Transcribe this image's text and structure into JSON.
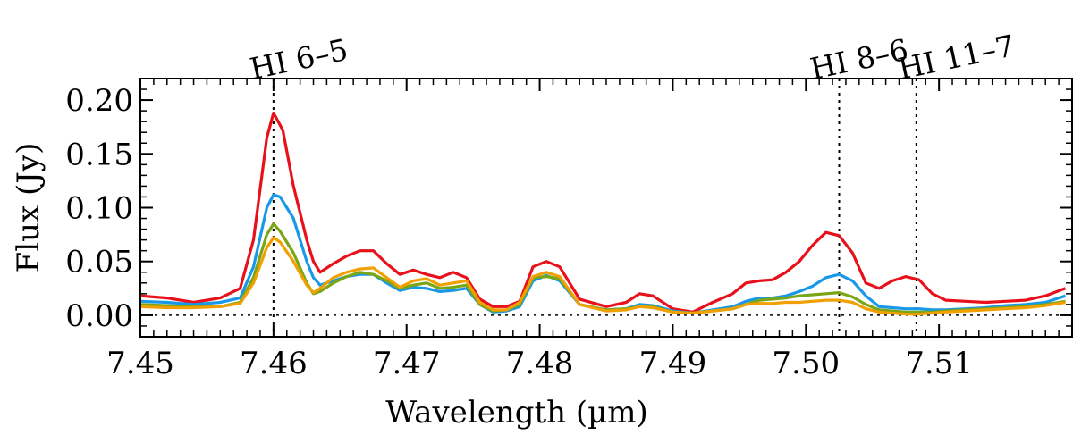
{
  "chart_data": {
    "type": "line",
    "title": "",
    "xlabel": "Wavelength (µm)",
    "ylabel": "Flux (Jy)",
    "xlim": [
      7.45,
      7.52
    ],
    "ylim": [
      -0.02,
      0.22
    ],
    "xticks": [
      7.45,
      7.46,
      7.47,
      7.48,
      7.49,
      7.5,
      7.51
    ],
    "xtick_labels": [
      "7.45",
      "7.46",
      "7.47",
      "7.48",
      "7.49",
      "7.50",
      "7.51"
    ],
    "yticks": [
      0.0,
      0.05,
      0.1,
      0.15,
      0.2
    ],
    "ytick_labels": [
      "0.00",
      "0.05",
      "0.10",
      "0.15",
      "0.20"
    ],
    "zero_line": 0.0,
    "lines": [
      {
        "name": "HI 6–5",
        "x": 7.46
      },
      {
        "name": "HI 8–6",
        "x": 7.5025
      },
      {
        "name": "HI 11–7",
        "x": 7.5083
      }
    ],
    "series": [
      {
        "name": "red",
        "color": "#e8101a",
        "points": [
          [
            7.45,
            0.018
          ],
          [
            7.452,
            0.016
          ],
          [
            7.454,
            0.012
          ],
          [
            7.456,
            0.016
          ],
          [
            7.4575,
            0.025
          ],
          [
            7.4585,
            0.07
          ],
          [
            7.4595,
            0.165
          ],
          [
            7.46,
            0.188
          ],
          [
            7.4607,
            0.172
          ],
          [
            7.4615,
            0.12
          ],
          [
            7.4625,
            0.07
          ],
          [
            7.463,
            0.05
          ],
          [
            7.4635,
            0.04
          ],
          [
            7.4645,
            0.048
          ],
          [
            7.4655,
            0.055
          ],
          [
            7.4665,
            0.06
          ],
          [
            7.4675,
            0.06
          ],
          [
            7.4685,
            0.048
          ],
          [
            7.4695,
            0.038
          ],
          [
            7.4705,
            0.042
          ],
          [
            7.4715,
            0.038
          ],
          [
            7.4725,
            0.035
          ],
          [
            7.4735,
            0.04
          ],
          [
            7.4745,
            0.035
          ],
          [
            7.4755,
            0.015
          ],
          [
            7.4765,
            0.008
          ],
          [
            7.4775,
            0.008
          ],
          [
            7.4785,
            0.013
          ],
          [
            7.4795,
            0.045
          ],
          [
            7.4805,
            0.05
          ],
          [
            7.4815,
            0.045
          ],
          [
            7.483,
            0.015
          ],
          [
            7.485,
            0.008
          ],
          [
            7.4865,
            0.012
          ],
          [
            7.4875,
            0.02
          ],
          [
            7.4885,
            0.018
          ],
          [
            7.49,
            0.006
          ],
          [
            7.4915,
            0.003
          ],
          [
            7.493,
            0.012
          ],
          [
            7.4945,
            0.02
          ],
          [
            7.4955,
            0.03
          ],
          [
            7.4965,
            0.032
          ],
          [
            7.4975,
            0.033
          ],
          [
            7.4985,
            0.04
          ],
          [
            7.4995,
            0.05
          ],
          [
            7.5005,
            0.065
          ],
          [
            7.5015,
            0.077
          ],
          [
            7.5025,
            0.074
          ],
          [
            7.5035,
            0.058
          ],
          [
            7.5045,
            0.03
          ],
          [
            7.5055,
            0.025
          ],
          [
            7.5065,
            0.032
          ],
          [
            7.5075,
            0.036
          ],
          [
            7.5085,
            0.033
          ],
          [
            7.5095,
            0.02
          ],
          [
            7.5105,
            0.014
          ],
          [
            7.512,
            0.013
          ],
          [
            7.5135,
            0.012
          ],
          [
            7.515,
            0.013
          ],
          [
            7.5165,
            0.014
          ],
          [
            7.518,
            0.018
          ],
          [
            7.5195,
            0.025
          ]
        ]
      },
      {
        "name": "blue",
        "color": "#1a98e8",
        "points": [
          [
            7.45,
            0.013
          ],
          [
            7.452,
            0.012
          ],
          [
            7.454,
            0.01
          ],
          [
            7.456,
            0.012
          ],
          [
            7.4575,
            0.016
          ],
          [
            7.4585,
            0.045
          ],
          [
            7.4595,
            0.1
          ],
          [
            7.46,
            0.112
          ],
          [
            7.4605,
            0.11
          ],
          [
            7.4615,
            0.09
          ],
          [
            7.4625,
            0.05
          ],
          [
            7.463,
            0.035
          ],
          [
            7.4635,
            0.028
          ],
          [
            7.4645,
            0.032
          ],
          [
            7.4655,
            0.036
          ],
          [
            7.4665,
            0.038
          ],
          [
            7.4675,
            0.038
          ],
          [
            7.4685,
            0.03
          ],
          [
            7.4695,
            0.023
          ],
          [
            7.4705,
            0.026
          ],
          [
            7.4715,
            0.025
          ],
          [
            7.4725,
            0.022
          ],
          [
            7.4735,
            0.023
          ],
          [
            7.4745,
            0.025
          ],
          [
            7.4755,
            0.01
          ],
          [
            7.4765,
            0.003
          ],
          [
            7.4775,
            0.004
          ],
          [
            7.4785,
            0.008
          ],
          [
            7.4795,
            0.032
          ],
          [
            7.4805,
            0.037
          ],
          [
            7.4815,
            0.032
          ],
          [
            7.483,
            0.01
          ],
          [
            7.485,
            0.005
          ],
          [
            7.4865,
            0.006
          ],
          [
            7.4875,
            0.01
          ],
          [
            7.4885,
            0.009
          ],
          [
            7.49,
            0.004
          ],
          [
            7.4915,
            0.002
          ],
          [
            7.493,
            0.005
          ],
          [
            7.4945,
            0.008
          ],
          [
            7.4955,
            0.013
          ],
          [
            7.4965,
            0.016
          ],
          [
            7.4975,
            0.016
          ],
          [
            7.4985,
            0.018
          ],
          [
            7.4995,
            0.022
          ],
          [
            7.5005,
            0.027
          ],
          [
            7.5015,
            0.035
          ],
          [
            7.5025,
            0.038
          ],
          [
            7.5035,
            0.032
          ],
          [
            7.5045,
            0.018
          ],
          [
            7.5055,
            0.008
          ],
          [
            7.5065,
            0.007
          ],
          [
            7.5075,
            0.006
          ],
          [
            7.5085,
            0.006
          ],
          [
            7.5095,
            0.005
          ],
          [
            7.5105,
            0.005
          ],
          [
            7.512,
            0.006
          ],
          [
            7.5135,
            0.007
          ],
          [
            7.515,
            0.009
          ],
          [
            7.5165,
            0.01
          ],
          [
            7.518,
            0.012
          ],
          [
            7.5195,
            0.018
          ]
        ]
      },
      {
        "name": "green",
        "color": "#7aa514",
        "points": [
          [
            7.45,
            0.01
          ],
          [
            7.452,
            0.009
          ],
          [
            7.454,
            0.008
          ],
          [
            7.456,
            0.008
          ],
          [
            7.4575,
            0.012
          ],
          [
            7.4585,
            0.035
          ],
          [
            7.4595,
            0.075
          ],
          [
            7.46,
            0.085
          ],
          [
            7.4605,
            0.078
          ],
          [
            7.4615,
            0.058
          ],
          [
            7.4625,
            0.03
          ],
          [
            7.463,
            0.02
          ],
          [
            7.4635,
            0.022
          ],
          [
            7.4645,
            0.03
          ],
          [
            7.4655,
            0.036
          ],
          [
            7.4665,
            0.04
          ],
          [
            7.4675,
            0.038
          ],
          [
            7.4685,
            0.032
          ],
          [
            7.4695,
            0.025
          ],
          [
            7.4705,
            0.028
          ],
          [
            7.4715,
            0.03
          ],
          [
            7.4725,
            0.025
          ],
          [
            7.4735,
            0.026
          ],
          [
            7.4745,
            0.028
          ],
          [
            7.4755,
            0.01
          ],
          [
            7.4765,
            0.004
          ],
          [
            7.4775,
            0.005
          ],
          [
            7.4785,
            0.01
          ],
          [
            7.4795,
            0.035
          ],
          [
            7.4805,
            0.036
          ],
          [
            7.4815,
            0.034
          ],
          [
            7.483,
            0.01
          ],
          [
            7.485,
            0.005
          ],
          [
            7.4865,
            0.006
          ],
          [
            7.4875,
            0.008
          ],
          [
            7.4885,
            0.008
          ],
          [
            7.49,
            0.003
          ],
          [
            7.4915,
            0.002
          ],
          [
            7.493,
            0.004
          ],
          [
            7.4945,
            0.006
          ],
          [
            7.4955,
            0.01
          ],
          [
            7.4965,
            0.014
          ],
          [
            7.4975,
            0.015
          ],
          [
            7.4985,
            0.016
          ],
          [
            7.4995,
            0.018
          ],
          [
            7.5005,
            0.019
          ],
          [
            7.5015,
            0.02
          ],
          [
            7.5025,
            0.021
          ],
          [
            7.5035,
            0.017
          ],
          [
            7.5045,
            0.01
          ],
          [
            7.5055,
            0.005
          ],
          [
            7.5065,
            0.004
          ],
          [
            7.5075,
            0.003
          ],
          [
            7.5085,
            0.003
          ],
          [
            7.5095,
            0.003
          ],
          [
            7.5105,
            0.004
          ],
          [
            7.512,
            0.005
          ],
          [
            7.5135,
            0.006
          ],
          [
            7.515,
            0.007
          ],
          [
            7.5165,
            0.008
          ],
          [
            7.518,
            0.01
          ],
          [
            7.5195,
            0.013
          ]
        ]
      },
      {
        "name": "orange",
        "color": "#f0a000",
        "points": [
          [
            7.45,
            0.008
          ],
          [
            7.452,
            0.007
          ],
          [
            7.454,
            0.007
          ],
          [
            7.456,
            0.008
          ],
          [
            7.4575,
            0.011
          ],
          [
            7.4585,
            0.03
          ],
          [
            7.4595,
            0.063
          ],
          [
            7.46,
            0.072
          ],
          [
            7.4605,
            0.068
          ],
          [
            7.4615,
            0.05
          ],
          [
            7.4625,
            0.028
          ],
          [
            7.463,
            0.021
          ],
          [
            7.4635,
            0.025
          ],
          [
            7.4645,
            0.035
          ],
          [
            7.4655,
            0.04
          ],
          [
            7.4665,
            0.043
          ],
          [
            7.4675,
            0.044
          ],
          [
            7.4685,
            0.035
          ],
          [
            7.4695,
            0.026
          ],
          [
            7.4705,
            0.032
          ],
          [
            7.4715,
            0.034
          ],
          [
            7.4725,
            0.028
          ],
          [
            7.4735,
            0.03
          ],
          [
            7.4745,
            0.032
          ],
          [
            7.4755,
            0.012
          ],
          [
            7.4765,
            0.005
          ],
          [
            7.4775,
            0.005
          ],
          [
            7.4785,
            0.012
          ],
          [
            7.4795,
            0.036
          ],
          [
            7.4805,
            0.04
          ],
          [
            7.4815,
            0.036
          ],
          [
            7.483,
            0.01
          ],
          [
            7.485,
            0.004
          ],
          [
            7.4865,
            0.005
          ],
          [
            7.4875,
            0.008
          ],
          [
            7.4885,
            0.007
          ],
          [
            7.49,
            0.003
          ],
          [
            7.4915,
            0.002
          ],
          [
            7.493,
            0.004
          ],
          [
            7.4945,
            0.006
          ],
          [
            7.4955,
            0.01
          ],
          [
            7.4965,
            0.011
          ],
          [
            7.4975,
            0.011
          ],
          [
            7.4985,
            0.012
          ],
          [
            7.4995,
            0.012
          ],
          [
            7.5005,
            0.013
          ],
          [
            7.5015,
            0.014
          ],
          [
            7.5025,
            0.014
          ],
          [
            7.5035,
            0.012
          ],
          [
            7.5045,
            0.006
          ],
          [
            7.5055,
            0.003
          ],
          [
            7.5065,
            0.002
          ],
          [
            7.5075,
            0.001
          ],
          [
            7.5085,
            0.001
          ],
          [
            7.5095,
            0.002
          ],
          [
            7.5105,
            0.003
          ],
          [
            7.512,
            0.004
          ],
          [
            7.5135,
            0.005
          ],
          [
            7.515,
            0.006
          ],
          [
            7.5165,
            0.007
          ],
          [
            7.518,
            0.009
          ],
          [
            7.5195,
            0.012
          ]
        ]
      }
    ]
  }
}
